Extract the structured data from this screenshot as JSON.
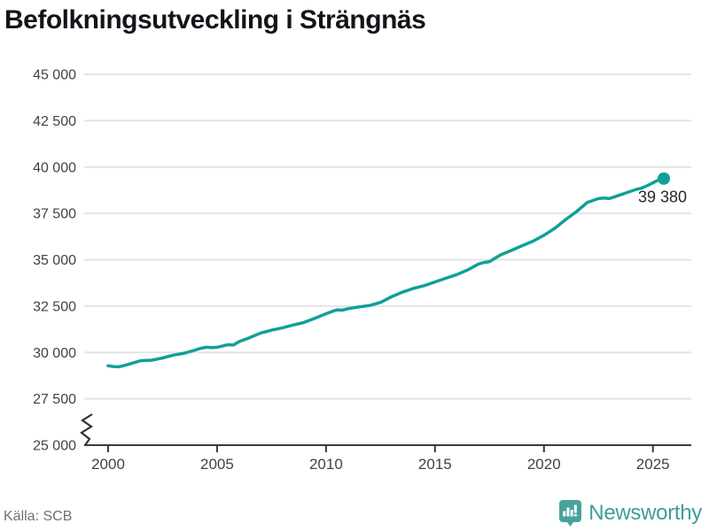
{
  "title": "Befolkningsutveckling i Strängnäs",
  "chart_data": {
    "type": "line",
    "title": "Befolkningsutveckling i Strängnäs",
    "xlabel": "",
    "ylabel": "",
    "grid": "horizontal",
    "legend": "none",
    "axis_break_at_bottom": true,
    "line_color": "#10a096",
    "xlim": [
      2000,
      2025.5
    ],
    "ylim": [
      25000,
      45000
    ],
    "y_ticks": {
      "values": [
        45000,
        42500,
        40000,
        37500,
        35000,
        32500,
        30000,
        27500,
        25000
      ],
      "labels": [
        "45 000",
        "42 500",
        "40 000",
        "37 500",
        "35 000",
        "32 500",
        "30 000",
        "27 500",
        "25 000"
      ]
    },
    "x_ticks": {
      "values": [
        2000,
        2005,
        2010,
        2015,
        2020,
        2025
      ],
      "labels": [
        "2000",
        "2005",
        "2010",
        "2015",
        "2020",
        "2025"
      ]
    },
    "end_label": "39 380",
    "end_point": [
      2025.5,
      39380
    ],
    "series": [
      {
        "name": "Befolkning",
        "points": [
          [
            2000,
            29280
          ],
          [
            2000.25,
            29240
          ],
          [
            2000.5,
            29230
          ],
          [
            2000.75,
            29300
          ],
          [
            2001,
            29380
          ],
          [
            2001.5,
            29560
          ],
          [
            2002,
            29580
          ],
          [
            2002.5,
            29700
          ],
          [
            2003,
            29860
          ],
          [
            2003.5,
            29960
          ],
          [
            2004,
            30130
          ],
          [
            2004.25,
            30220
          ],
          [
            2004.5,
            30280
          ],
          [
            2004.75,
            30260
          ],
          [
            2005,
            30280
          ],
          [
            2005.5,
            30420
          ],
          [
            2005.75,
            30400
          ],
          [
            2006,
            30580
          ],
          [
            2006.5,
            30800
          ],
          [
            2007,
            31050
          ],
          [
            2007.5,
            31200
          ],
          [
            2008,
            31330
          ],
          [
            2008.5,
            31480
          ],
          [
            2009,
            31620
          ],
          [
            2009.5,
            31850
          ],
          [
            2010,
            32090
          ],
          [
            2010.25,
            32200
          ],
          [
            2010.5,
            32300
          ],
          [
            2010.75,
            32280
          ],
          [
            2011,
            32360
          ],
          [
            2011.5,
            32450
          ],
          [
            2012,
            32530
          ],
          [
            2012.5,
            32700
          ],
          [
            2013,
            33000
          ],
          [
            2013.5,
            33250
          ],
          [
            2014,
            33450
          ],
          [
            2014.5,
            33600
          ],
          [
            2015,
            33800
          ],
          [
            2015.5,
            34000
          ],
          [
            2016,
            34200
          ],
          [
            2016.5,
            34450
          ],
          [
            2017,
            34770
          ],
          [
            2017.25,
            34850
          ],
          [
            2017.5,
            34900
          ],
          [
            2018,
            35260
          ],
          [
            2018.5,
            35500
          ],
          [
            2019,
            35760
          ],
          [
            2019.5,
            36000
          ],
          [
            2020,
            36320
          ],
          [
            2020.5,
            36700
          ],
          [
            2021,
            37170
          ],
          [
            2021.5,
            37600
          ],
          [
            2022,
            38100
          ],
          [
            2022.25,
            38200
          ],
          [
            2022.5,
            38300
          ],
          [
            2022.75,
            38330
          ],
          [
            2023,
            38300
          ],
          [
            2023.25,
            38400
          ],
          [
            2023.5,
            38500
          ],
          [
            2023.75,
            38600
          ],
          [
            2024,
            38700
          ],
          [
            2024.25,
            38800
          ],
          [
            2024.5,
            38870
          ],
          [
            2024.75,
            39000
          ],
          [
            2025,
            39150
          ],
          [
            2025.25,
            39300
          ],
          [
            2025.5,
            39380
          ]
        ]
      }
    ]
  },
  "footer": {
    "source": "Källa: SCB",
    "brand": "Newsworthy"
  }
}
